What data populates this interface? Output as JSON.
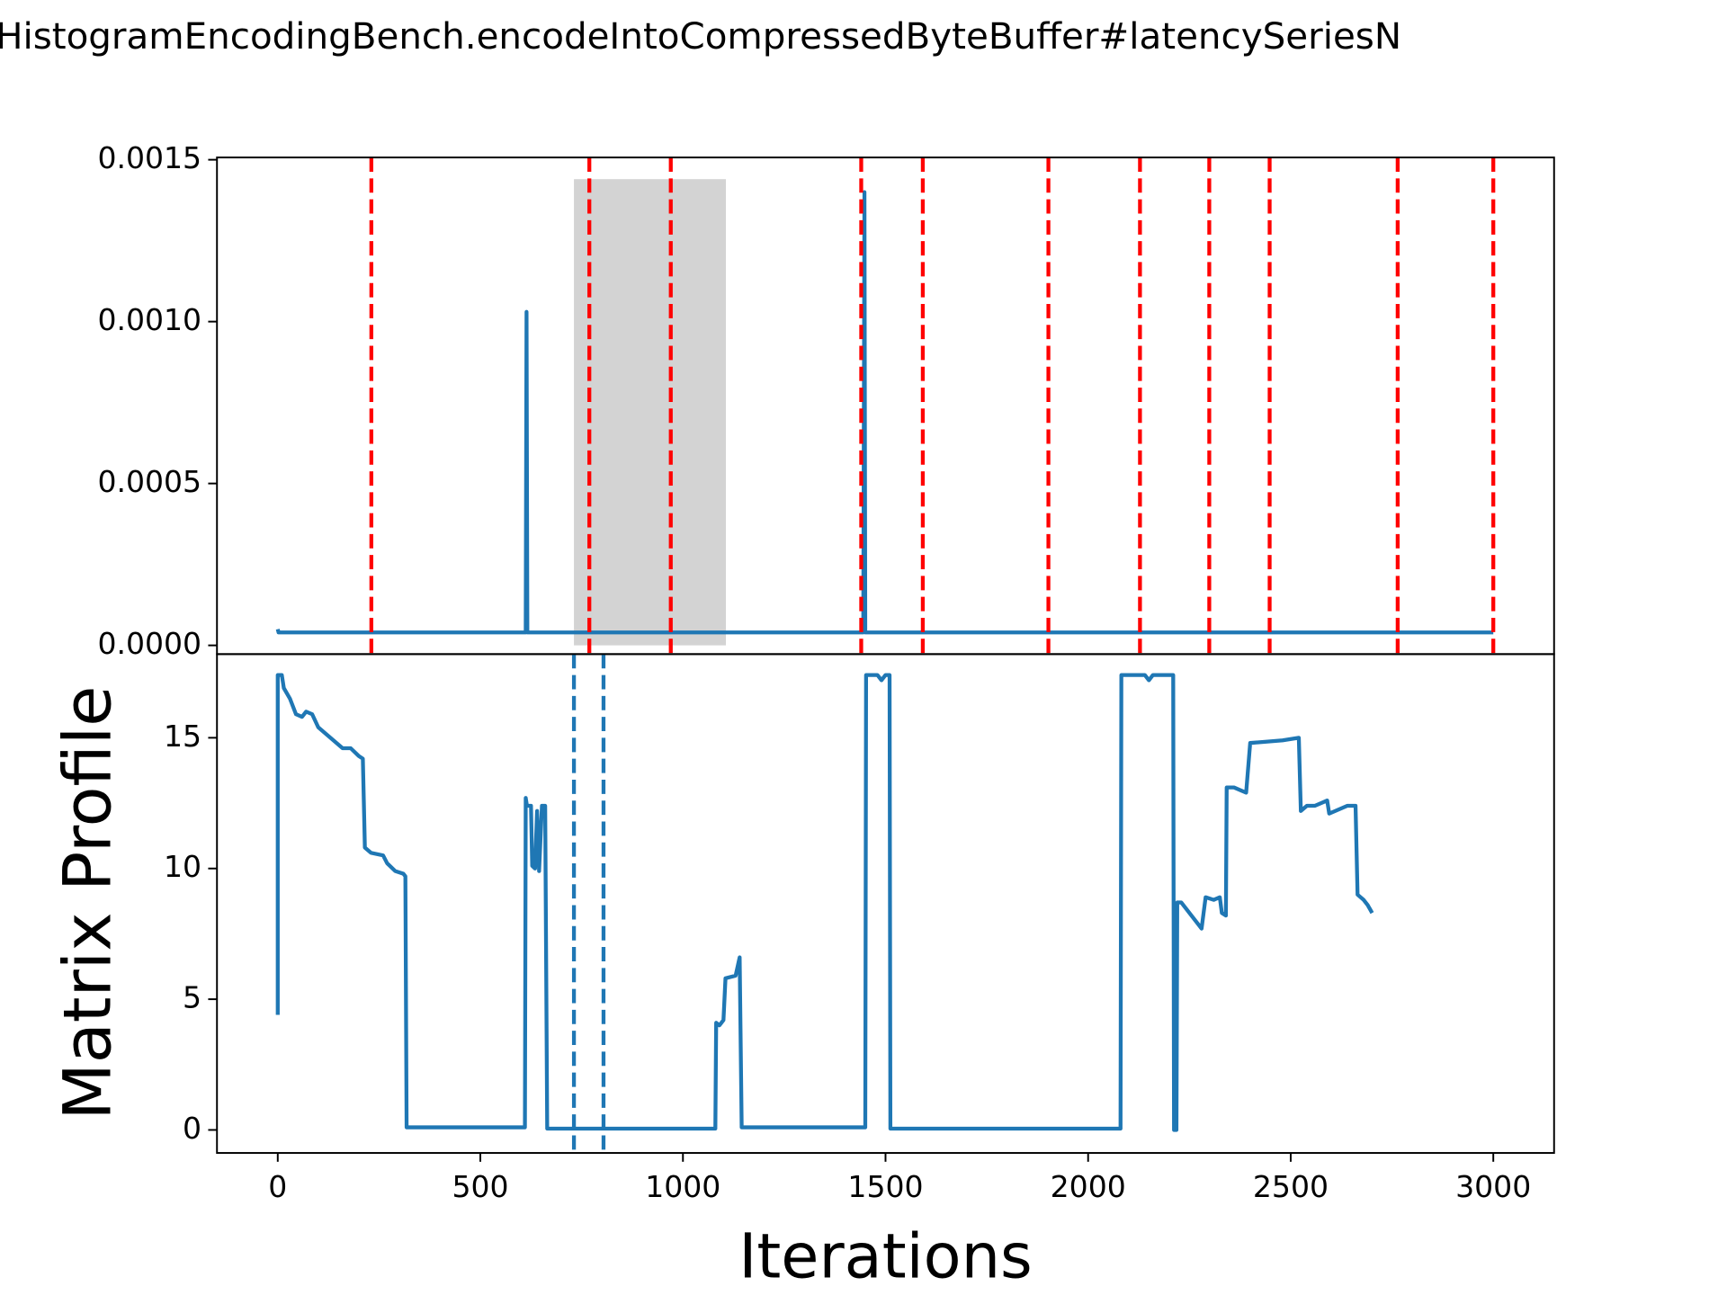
{
  "chart_data": [
    {
      "type": "line",
      "title": "HistogramEncodingBench.encodeIntoCompressedByteBuffer#latencySeriesN",
      "x": [
        0,
        2,
        612,
        614,
        616,
        618,
        1445,
        1448,
        1450,
        1452,
        3000
      ],
      "values": [
        5e-05,
        4e-05,
        4e-05,
        0.00103,
        4e-05,
        4e-05,
        4e-05,
        0.0014,
        4e-05,
        4e-05,
        4e-05
      ],
      "color": "#1f77b4",
      "xlim": [
        -150,
        3150
      ],
      "ylim": [
        -2.7e-05,
        0.001507
      ],
      "yticks": [
        {
          "value": 0,
          "label": "0.0000"
        },
        {
          "value": 0.0005,
          "label": "0.0005"
        },
        {
          "value": 0.001,
          "label": "0.0010"
        },
        {
          "value": 0.0015,
          "label": "0.0015"
        }
      ],
      "vlines": {
        "values": [
          231,
          769,
          970,
          1440,
          1592,
          1902,
          2128,
          2299,
          2448,
          2764,
          3000
        ],
        "color": "#ff0000"
      },
      "span": {
        "xlim": [
          731,
          1106
        ],
        "ylim": [
          0,
          0.00144
        ],
        "color": "#d3d3d3"
      }
    },
    {
      "type": "line",
      "x": [
        0,
        0,
        10,
        15,
        30,
        45,
        60,
        70,
        85,
        100,
        130,
        160,
        180,
        200,
        210,
        215,
        230,
        260,
        270,
        290,
        310,
        315,
        318,
        400,
        610,
        612,
        615,
        625,
        628,
        635,
        640,
        645,
        652,
        660,
        665,
        720,
        1080,
        1082,
        1090,
        1100,
        1105,
        1130,
        1140,
        1145,
        1450,
        1452,
        1480,
        1490,
        1500,
        1510,
        1512,
        2080,
        2082,
        2140,
        2150,
        2160,
        2210,
        2212,
        2218,
        2220,
        2230,
        2280,
        2290,
        2310,
        2325,
        2330,
        2340,
        2342,
        2360,
        2390,
        2400,
        2480,
        2520,
        2525,
        2540,
        2560,
        2590,
        2595,
        2640,
        2660,
        2665,
        2680,
        2690,
        2701
      ],
      "values": [
        4.4,
        17.4,
        17.4,
        16.9,
        16.5,
        15.9,
        15.8,
        16.0,
        15.9,
        15.4,
        15.0,
        14.6,
        14.6,
        14.3,
        14.2,
        10.8,
        10.6,
        10.5,
        10.2,
        9.9,
        9.8,
        9.7,
        0.1,
        0.1,
        0.1,
        12.7,
        12.4,
        12.4,
        10.1,
        10.0,
        12.2,
        9.9,
        12.4,
        12.4,
        0.05,
        0.05,
        0.05,
        4.1,
        4.0,
        4.2,
        5.8,
        5.9,
        6.6,
        0.1,
        0.1,
        17.4,
        17.4,
        17.2,
        17.4,
        17.4,
        0.05,
        0.05,
        17.4,
        17.4,
        17.2,
        17.4,
        17.4,
        0,
        0,
        8.7,
        8.7,
        7.7,
        8.9,
        8.8,
        8.9,
        8.3,
        8.2,
        13.1,
        13.1,
        12.9,
        14.8,
        14.9,
        15.0,
        12.2,
        12.4,
        12.4,
        12.6,
        12.1,
        12.4,
        12.4,
        9.0,
        8.8,
        8.6,
        8.3
      ],
      "color": "#1f77b4",
      "xlim": [
        -150,
        3150
      ],
      "ylim": [
        -0.88,
        18.2
      ],
      "xticks": [
        0,
        500,
        1000,
        1500,
        2000,
        2500,
        3000
      ],
      "yticks": [
        0,
        5,
        10,
        15
      ],
      "xlabel": "Iterations",
      "ylabel": "Matrix Profile",
      "vlines": {
        "values": [
          731,
          804
        ],
        "color": "#1f77b4"
      }
    }
  ]
}
